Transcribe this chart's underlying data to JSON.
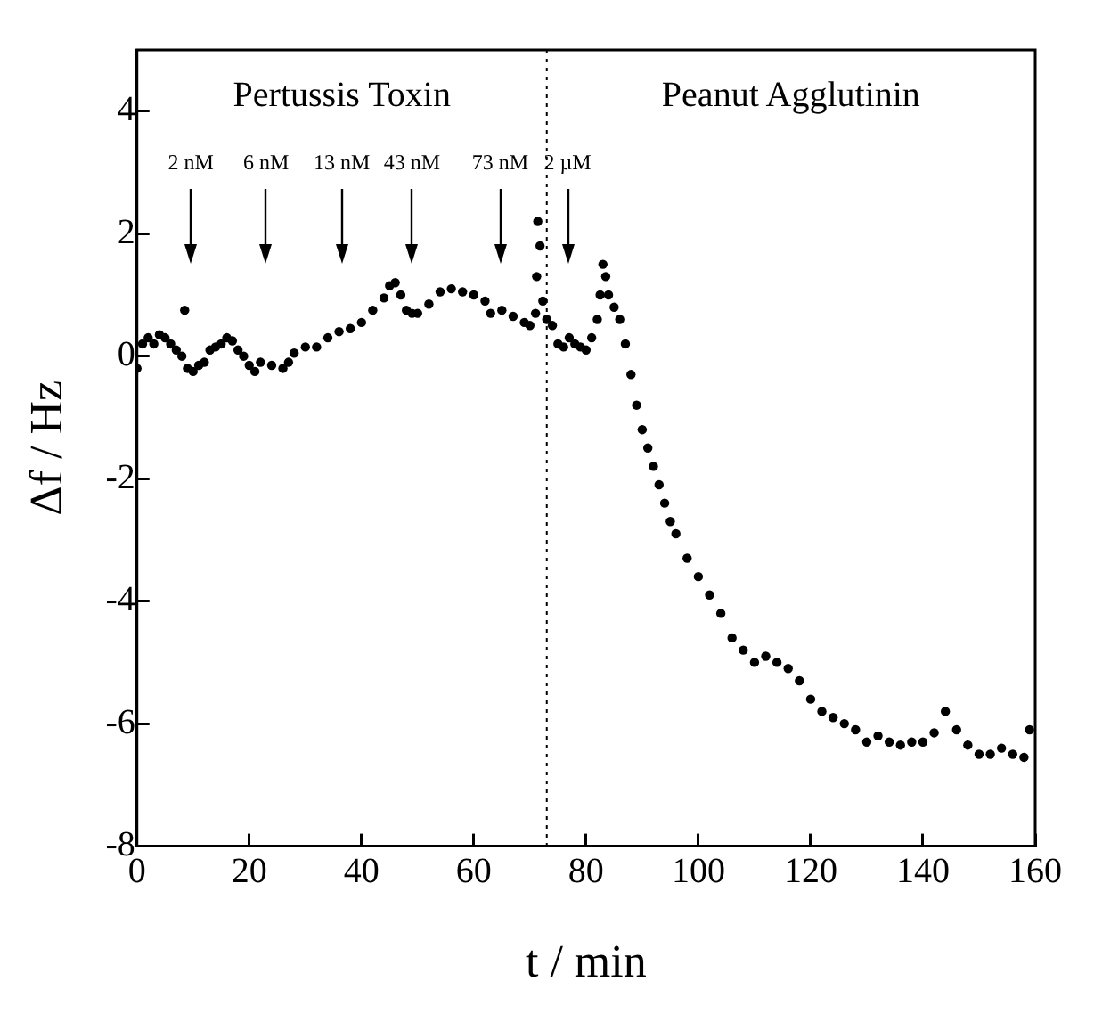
{
  "chart_data": {
    "type": "scatter",
    "xlabel": "t / min",
    "ylabel": "Δf / Hz",
    "xlim": [
      0,
      160
    ],
    "xticks": [
      0,
      20,
      40,
      60,
      80,
      100,
      120,
      140,
      160
    ],
    "ylim": [
      -8,
      5
    ],
    "yticks": [
      -8,
      -6,
      -4,
      -2,
      0,
      2,
      4
    ],
    "grid": false,
    "legend": false,
    "marker": "circle",
    "ref_lines": [
      {
        "axis": "x",
        "value": 73,
        "line_style": "dotted",
        "color": "#000000"
      }
    ],
    "annotations": [
      "Pertussis Toxin",
      "Peanut Agglutinin",
      {
        "text": "2 nM",
        "x": 9.6
      },
      {
        "text": "6 nM",
        "x": 23
      },
      {
        "text": "13 nM",
        "x": 36.5
      },
      {
        "text": "43 nM",
        "x": 49
      },
      {
        "text": "73 nM",
        "x": 64.7
      },
      {
        "text": "2 µM",
        "x": 76.7
      }
    ],
    "series": [
      {
        "color": "#000000",
        "x": [
          0,
          1,
          2,
          3,
          4,
          5,
          6,
          7,
          8,
          8.5,
          9,
          10,
          11,
          12,
          13,
          14,
          15,
          16,
          17,
          18,
          19,
          20,
          21,
          22,
          24,
          26,
          27,
          28,
          30,
          32,
          34,
          36,
          38,
          40,
          42,
          44,
          45,
          46,
          47,
          48,
          49,
          50,
          52,
          54,
          56,
          58,
          60,
          62,
          63,
          65,
          67,
          69,
          70,
          71,
          71.2,
          71.4,
          71.8,
          72.3,
          73,
          74,
          75,
          76,
          77,
          78,
          79,
          80,
          81,
          82,
          82.5,
          83,
          83.5,
          84,
          85,
          86,
          87,
          88,
          89,
          90,
          91,
          92,
          93,
          94,
          95,
          96,
          98,
          100,
          102,
          104,
          106,
          108,
          110,
          112,
          114,
          116,
          118,
          120,
          122,
          124,
          126,
          128,
          130,
          132,
          134,
          136,
          138,
          140,
          142,
          144,
          146,
          148,
          150,
          152,
          154,
          156,
          158,
          159
        ],
        "values": [
          -0.2,
          0.2,
          0.3,
          0.2,
          0.35,
          0.3,
          0.2,
          0.1,
          0.0,
          0.75,
          -0.2,
          -0.25,
          -0.15,
          -0.1,
          0.1,
          0.15,
          0.2,
          0.3,
          0.25,
          0.1,
          0.0,
          -0.15,
          -0.25,
          -0.1,
          -0.15,
          -0.2,
          -0.1,
          0.05,
          0.15,
          0.15,
          0.3,
          0.4,
          0.45,
          0.55,
          0.75,
          0.95,
          1.15,
          1.2,
          1.0,
          0.75,
          0.7,
          0.7,
          0.85,
          1.05,
          1.1,
          1.05,
          1.0,
          0.9,
          0.7,
          0.75,
          0.65,
          0.55,
          0.5,
          0.7,
          1.3,
          2.2,
          1.8,
          0.9,
          0.6,
          0.5,
          0.2,
          0.15,
          0.3,
          0.2,
          0.15,
          0.1,
          0.3,
          0.6,
          1.0,
          1.5,
          1.3,
          1.0,
          0.8,
          0.6,
          0.2,
          -0.3,
          -0.8,
          -1.2,
          -1.5,
          -1.8,
          -2.1,
          -2.4,
          -2.7,
          -2.9,
          -3.3,
          -3.6,
          -3.9,
          -4.2,
          -4.6,
          -4.8,
          -5.0,
          -4.9,
          -5.0,
          -5.1,
          -5.3,
          -5.6,
          -5.8,
          -5.9,
          -6.0,
          -6.1,
          -6.3,
          -6.2,
          -6.3,
          -6.35,
          -6.3,
          -6.3,
          -6.15,
          -5.8,
          -6.1,
          -6.35,
          -6.5,
          -6.5,
          -6.4,
          -6.5,
          -6.55,
          -6.1
        ]
      }
    ]
  }
}
